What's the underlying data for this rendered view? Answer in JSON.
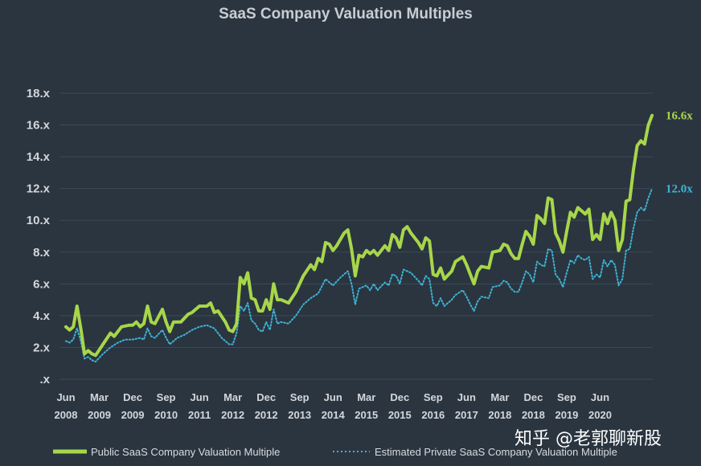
{
  "chart_data": {
    "type": "line",
    "title": "SaaS Company Valuation Multiples",
    "y_ticks": [
      ".x",
      "2.x",
      "4.x",
      "6.x",
      "8.x",
      "10.x",
      "12.x",
      "14.x",
      "16.x",
      "18.x"
    ],
    "ylim": [
      0,
      18
    ],
    "x_ticks": [
      {
        "month": "Jun",
        "year": "2008"
      },
      {
        "month": "Mar",
        "year": "2009"
      },
      {
        "month": "Dec",
        "year": "2009"
      },
      {
        "month": "Sep",
        "year": "2010"
      },
      {
        "month": "Jun",
        "year": "2011"
      },
      {
        "month": "Mar",
        "year": "2012"
      },
      {
        "month": "Dec",
        "year": "2012"
      },
      {
        "month": "Sep",
        "year": "2013"
      },
      {
        "month": "Jun",
        "year": "2014"
      },
      {
        "month": "Mar",
        "year": "2015"
      },
      {
        "month": "Dec",
        "year": "2015"
      },
      {
        "month": "Sep",
        "year": "2016"
      },
      {
        "month": "Jun",
        "year": "2017"
      },
      {
        "month": "Mar",
        "year": "2018"
      },
      {
        "month": "Dec",
        "year": "2018"
      },
      {
        "month": "Sep",
        "year": "2019"
      },
      {
        "month": "Jun",
        "year": "2020"
      }
    ],
    "x_unit": "months since Jun 2008",
    "x_tick_positions": [
      0,
      9,
      18,
      27,
      36,
      45,
      54,
      63,
      72,
      81,
      90,
      99,
      108,
      117,
      126,
      135,
      144
    ],
    "xlim": [
      0,
      153
    ],
    "series": [
      {
        "name": "Public SaaS Company Valuation Multiple",
        "color": "#a8d64a",
        "style": "solid",
        "end_label": "16.6x",
        "points": [
          [
            0,
            3.3
          ],
          [
            1,
            3.1
          ],
          [
            2,
            3.3
          ],
          [
            3,
            4.6
          ],
          [
            4,
            3.2
          ],
          [
            5,
            1.6
          ],
          [
            6,
            1.8
          ],
          [
            7,
            1.6
          ],
          [
            8,
            1.5
          ],
          [
            10,
            2.2
          ],
          [
            12,
            2.9
          ],
          [
            13,
            2.7
          ],
          [
            15,
            3.3
          ],
          [
            17,
            3.4
          ],
          [
            18,
            3.4
          ],
          [
            19,
            3.6
          ],
          [
            20,
            3.3
          ],
          [
            21,
            3.5
          ],
          [
            22,
            4.6
          ],
          [
            23,
            3.6
          ],
          [
            24,
            3.5
          ],
          [
            26,
            4.4
          ],
          [
            27,
            3.6
          ],
          [
            28,
            3.0
          ],
          [
            29,
            3.6
          ],
          [
            31,
            3.6
          ],
          [
            33,
            4.1
          ],
          [
            34,
            4.2
          ],
          [
            36,
            4.6
          ],
          [
            38,
            4.6
          ],
          [
            39,
            4.8
          ],
          [
            40,
            4.2
          ],
          [
            41,
            4.3
          ],
          [
            43,
            3.6
          ],
          [
            44,
            3.1
          ],
          [
            45,
            3.0
          ],
          [
            46,
            3.5
          ],
          [
            47,
            6.4
          ],
          [
            48,
            6.0
          ],
          [
            49,
            6.7
          ],
          [
            50,
            5.1
          ],
          [
            51,
            5.0
          ],
          [
            52,
            4.3
          ],
          [
            53,
            4.3
          ],
          [
            54,
            5.0
          ],
          [
            55,
            4.4
          ],
          [
            56,
            6.0
          ],
          [
            57,
            5.0
          ],
          [
            58,
            5.0
          ],
          [
            60,
            4.8
          ],
          [
            62,
            5.5
          ],
          [
            64,
            6.5
          ],
          [
            66,
            7.2
          ],
          [
            67,
            6.9
          ],
          [
            68,
            7.6
          ],
          [
            69,
            7.4
          ],
          [
            70,
            8.6
          ],
          [
            71,
            8.5
          ],
          [
            72,
            8.1
          ],
          [
            73,
            8.4
          ],
          [
            75,
            9.2
          ],
          [
            76,
            9.4
          ],
          [
            77,
            8.2
          ],
          [
            78,
            6.5
          ],
          [
            79,
            7.8
          ],
          [
            80,
            7.7
          ],
          [
            81,
            8.1
          ],
          [
            82,
            7.9
          ],
          [
            83,
            8.1
          ],
          [
            84,
            7.8
          ],
          [
            86,
            8.4
          ],
          [
            87,
            8.1
          ],
          [
            88,
            9.1
          ],
          [
            89,
            8.9
          ],
          [
            90,
            8.3
          ],
          [
            91,
            9.4
          ],
          [
            92,
            9.6
          ],
          [
            93,
            9.2
          ],
          [
            95,
            8.6
          ],
          [
            96,
            8.2
          ],
          [
            97,
            8.9
          ],
          [
            98,
            8.7
          ],
          [
            99,
            6.6
          ],
          [
            100,
            6.5
          ],
          [
            101,
            7.0
          ],
          [
            102,
            6.3
          ],
          [
            104,
            6.8
          ],
          [
            105,
            7.4
          ],
          [
            107,
            7.7
          ],
          [
            108,
            7.2
          ],
          [
            109,
            6.6
          ],
          [
            110,
            6.0
          ],
          [
            111,
            6.8
          ],
          [
            112,
            7.1
          ],
          [
            114,
            7.0
          ],
          [
            115,
            8.0
          ],
          [
            117,
            8.1
          ],
          [
            118,
            8.5
          ],
          [
            119,
            8.4
          ],
          [
            120,
            7.9
          ],
          [
            121,
            7.6
          ],
          [
            122,
            7.6
          ],
          [
            123,
            8.5
          ],
          [
            124,
            9.3
          ],
          [
            125,
            9.0
          ],
          [
            126,
            8.5
          ],
          [
            127,
            10.3
          ],
          [
            128,
            10.1
          ],
          [
            129,
            9.8
          ],
          [
            130,
            11.4
          ],
          [
            131,
            11.3
          ],
          [
            132,
            9.2
          ],
          [
            133,
            8.7
          ],
          [
            134,
            8.0
          ],
          [
            135,
            9.3
          ],
          [
            136,
            10.5
          ],
          [
            137,
            10.2
          ],
          [
            138,
            10.8
          ],
          [
            139,
            10.6
          ],
          [
            140,
            10.4
          ],
          [
            141,
            10.7
          ],
          [
            142,
            8.8
          ],
          [
            143,
            9.1
          ],
          [
            144,
            8.8
          ],
          [
            145,
            10.4
          ],
          [
            146,
            9.8
          ],
          [
            147,
            10.5
          ],
          [
            148,
            10.0
          ],
          [
            149,
            8.1
          ],
          [
            150,
            8.8
          ],
          [
            151,
            11.2
          ],
          [
            152,
            11.3
          ],
          [
            153,
            13.2
          ],
          [
            154,
            14.7
          ],
          [
            155,
            15.0
          ],
          [
            156,
            14.8
          ],
          [
            157,
            16.0
          ],
          [
            158,
            16.6
          ]
        ]
      },
      {
        "name": "Estimated Private SaaS Company Valuation Multiple",
        "color": "#3fb3d4",
        "style": "dotted",
        "end_label": "12.0x",
        "points": [
          [
            0,
            2.4
          ],
          [
            1,
            2.3
          ],
          [
            2,
            2.5
          ],
          [
            3,
            3.2
          ],
          [
            4,
            2.4
          ],
          [
            5,
            1.3
          ],
          [
            6,
            1.4
          ],
          [
            7,
            1.2
          ],
          [
            8,
            1.1
          ],
          [
            10,
            1.6
          ],
          [
            12,
            2.0
          ],
          [
            14,
            2.3
          ],
          [
            16,
            2.5
          ],
          [
            18,
            2.5
          ],
          [
            20,
            2.6
          ],
          [
            21,
            2.5
          ],
          [
            22,
            3.2
          ],
          [
            23,
            2.7
          ],
          [
            24,
            2.6
          ],
          [
            26,
            3.1
          ],
          [
            27,
            2.6
          ],
          [
            28,
            2.2
          ],
          [
            30,
            2.6
          ],
          [
            32,
            2.8
          ],
          [
            34,
            3.1
          ],
          [
            36,
            3.3
          ],
          [
            38,
            3.4
          ],
          [
            40,
            3.2
          ],
          [
            42,
            2.6
          ],
          [
            44,
            2.2
          ],
          [
            45,
            2.2
          ],
          [
            46,
            2.9
          ],
          [
            47,
            4.6
          ],
          [
            48,
            4.3
          ],
          [
            49,
            4.8
          ],
          [
            50,
            3.7
          ],
          [
            51,
            3.5
          ],
          [
            52,
            3.1
          ],
          [
            53,
            3.0
          ],
          [
            54,
            3.6
          ],
          [
            55,
            3.1
          ],
          [
            56,
            4.4
          ],
          [
            57,
            3.5
          ],
          [
            58,
            3.6
          ],
          [
            60,
            3.5
          ],
          [
            62,
            4.0
          ],
          [
            64,
            4.7
          ],
          [
            66,
            5.1
          ],
          [
            68,
            5.4
          ],
          [
            70,
            6.3
          ],
          [
            72,
            5.9
          ],
          [
            74,
            6.4
          ],
          [
            76,
            6.8
          ],
          [
            77,
            6.0
          ],
          [
            78,
            4.7
          ],
          [
            79,
            5.7
          ],
          [
            81,
            5.9
          ],
          [
            82,
            5.6
          ],
          [
            83,
            6.0
          ],
          [
            84,
            5.6
          ],
          [
            86,
            6.1
          ],
          [
            87,
            5.9
          ],
          [
            88,
            6.6
          ],
          [
            89,
            6.5
          ],
          [
            90,
            6.0
          ],
          [
            91,
            6.9
          ],
          [
            93,
            6.7
          ],
          [
            95,
            6.2
          ],
          [
            96,
            5.9
          ],
          [
            97,
            6.5
          ],
          [
            98,
            6.3
          ],
          [
            99,
            4.8
          ],
          [
            100,
            4.6
          ],
          [
            101,
            5.1
          ],
          [
            102,
            4.6
          ],
          [
            104,
            5.0
          ],
          [
            105,
            5.3
          ],
          [
            107,
            5.6
          ],
          [
            108,
            5.2
          ],
          [
            109,
            4.7
          ],
          [
            110,
            4.3
          ],
          [
            111,
            4.9
          ],
          [
            112,
            5.2
          ],
          [
            114,
            5.1
          ],
          [
            115,
            5.8
          ],
          [
            117,
            5.9
          ],
          [
            118,
            6.2
          ],
          [
            119,
            6.1
          ],
          [
            120,
            5.7
          ],
          [
            121,
            5.5
          ],
          [
            122,
            5.5
          ],
          [
            123,
            6.1
          ],
          [
            124,
            6.8
          ],
          [
            125,
            6.6
          ],
          [
            126,
            6.1
          ],
          [
            127,
            7.4
          ],
          [
            128,
            7.2
          ],
          [
            129,
            7.1
          ],
          [
            130,
            8.2
          ],
          [
            131,
            8.1
          ],
          [
            132,
            6.6
          ],
          [
            133,
            6.3
          ],
          [
            134,
            5.8
          ],
          [
            135,
            6.7
          ],
          [
            136,
            7.5
          ],
          [
            137,
            7.3
          ],
          [
            138,
            7.8
          ],
          [
            139,
            7.6
          ],
          [
            140,
            7.5
          ],
          [
            141,
            7.7
          ],
          [
            142,
            6.3
          ],
          [
            143,
            6.6
          ],
          [
            144,
            6.4
          ],
          [
            145,
            7.5
          ],
          [
            146,
            7.1
          ],
          [
            147,
            7.5
          ],
          [
            148,
            7.2
          ],
          [
            149,
            5.9
          ],
          [
            150,
            6.3
          ],
          [
            151,
            8.1
          ],
          [
            152,
            8.2
          ],
          [
            153,
            9.5
          ],
          [
            154,
            10.5
          ],
          [
            155,
            10.8
          ],
          [
            156,
            10.6
          ],
          [
            157,
            11.4
          ],
          [
            158,
            12.0
          ]
        ]
      }
    ],
    "legend_position": "bottom",
    "grid": true
  },
  "watermark": "知乎 @老郭聊新股"
}
